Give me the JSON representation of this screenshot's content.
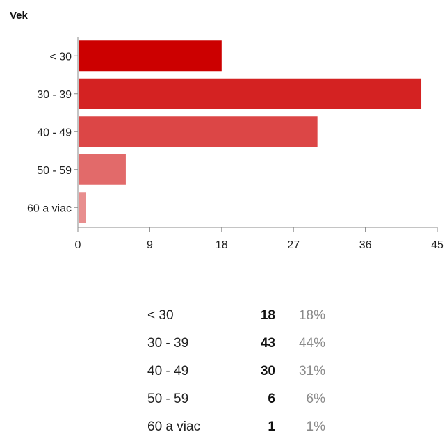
{
  "chart_data": {
    "type": "bar",
    "orientation": "horizontal",
    "title": "Vek",
    "categories": [
      "< 30",
      "30 - 39",
      "40 - 49",
      "50 - 59",
      "60 a viac"
    ],
    "values": [
      18,
      43,
      30,
      6,
      1
    ],
    "colors": [
      "#cc0000",
      "#d42222",
      "#dc4646",
      "#e26a6a",
      "#e88e8e"
    ],
    "xlim": [
      0,
      45
    ],
    "xticks": [
      "0",
      "9",
      "18",
      "27",
      "36",
      "45"
    ],
    "grid": false,
    "summary": [
      {
        "label": "< 30",
        "count": "18",
        "percent": "18%"
      },
      {
        "label": "30 - 39",
        "count": "43",
        "percent": "44%"
      },
      {
        "label": "40 - 49",
        "count": "30",
        "percent": "31%"
      },
      {
        "label": "50 - 59",
        "count": "6",
        "percent": "6%"
      },
      {
        "label": "60 a viac",
        "count": "1",
        "percent": "1%"
      }
    ]
  }
}
